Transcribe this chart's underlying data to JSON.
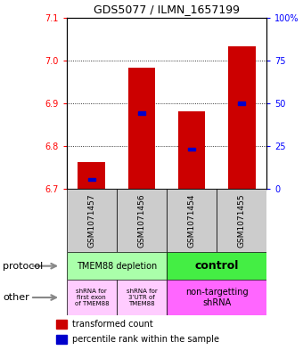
{
  "title": "GDS5077 / ILMN_1657199",
  "samples": [
    "GSM1071457",
    "GSM1071456",
    "GSM1071454",
    "GSM1071455"
  ],
  "bar_tops": [
    6.762,
    6.982,
    6.882,
    7.032
  ],
  "bar_bottom": 6.7,
  "percentile_values": [
    6.722,
    6.877,
    6.793,
    6.9
  ],
  "bar_color": "#cc0000",
  "percentile_color": "#0000cc",
  "ylim_left": [
    6.7,
    7.1
  ],
  "ylim_right": [
    0,
    100
  ],
  "yticks_left": [
    6.7,
    6.8,
    6.9,
    7.0,
    7.1
  ],
  "yticks_right": [
    0,
    25,
    50,
    75,
    100
  ],
  "ytick_labels_right": [
    "0",
    "25",
    "50",
    "75",
    "100%"
  ],
  "gridlines": [
    6.8,
    6.9,
    7.0
  ],
  "bar_width": 0.55,
  "protocol_label_left": "TMEM88 depletion",
  "protocol_label_right": "control",
  "protocol_color_left": "#aaffaa",
  "protocol_color_right": "#44ee44",
  "other_label_0": "shRNA for\nfirst exon\nof TMEM88",
  "other_label_1": "shRNA for\n3’UTR of\nTMEM88",
  "other_label_2": "non-targetting\nshRNA",
  "other_color_light": "#ffccff",
  "other_color_dark": "#ff66ff",
  "legend_red": "transformed count",
  "legend_blue": "percentile rank within the sample",
  "protocol_arrow_label": "protocol",
  "other_arrow_label": "other",
  "label_color_gray": "#888888",
  "sample_box_color": "#cccccc",
  "bg_color": "#ffffff"
}
